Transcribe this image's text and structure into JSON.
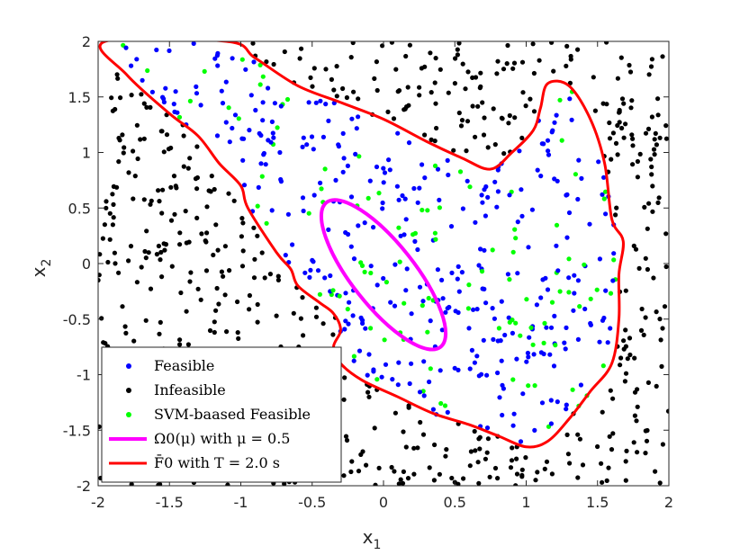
{
  "chart_data": {
    "type": "scatter",
    "title": "",
    "xlabel": "x",
    "xlabel_sub": "1",
    "ylabel": "x",
    "ylabel_sub": "2",
    "xlim": [
      -2,
      2
    ],
    "ylim": [
      -2,
      2
    ],
    "xticks": [
      -2,
      -1.5,
      -1,
      -0.5,
      0,
      0.5,
      1,
      1.5,
      2
    ],
    "xtick_labels": [
      "-2",
      "-1.5",
      "-1",
      "-0.5",
      "0",
      "0.5",
      "1",
      "1.5",
      "2"
    ],
    "yticks": [
      -2,
      -1.5,
      -1,
      -0.5,
      0,
      0.5,
      1,
      1.5,
      2
    ],
    "ytick_labels": [
      "-2",
      "-1.5",
      "-1",
      "-0.5",
      "0",
      "0.5",
      "1",
      "1.5",
      "2"
    ],
    "grid": false,
    "legend_position": "bottom-left",
    "series": [
      {
        "name": "Feasible",
        "kind": "points",
        "color": "#0000ff",
        "sample_count": 360
      },
      {
        "name": "Infeasible",
        "kind": "points",
        "color": "#000000",
        "sample_count": 640
      },
      {
        "name": "SVM-baased Feasible",
        "kind": "points",
        "color": "#00ff00",
        "sample_count": 110
      },
      {
        "name": "Ω0(μ) with μ = 0.5",
        "kind": "ellipse",
        "color": "#ff00ff",
        "center": [
          0,
          -0.1
        ],
        "axis_points": [
          [
            -0.4,
            0.55
          ],
          [
            0.4,
            -0.75
          ]
        ],
        "semi_minor": 0.22
      },
      {
        "name": "F̄0 with T = 2.0 s",
        "kind": "boundary",
        "color": "#ff0000",
        "path": [
          [
            -1.95,
            2.0
          ],
          [
            -1.8,
            1.7
          ],
          [
            -1.5,
            1.35
          ],
          [
            -1.3,
            1.15
          ],
          [
            -1.15,
            0.9
          ],
          [
            -1.0,
            0.7
          ],
          [
            -0.95,
            0.5
          ],
          [
            -0.75,
            0.1
          ],
          [
            -0.65,
            -0.05
          ],
          [
            -0.6,
            -0.2
          ],
          [
            -0.45,
            -0.35
          ],
          [
            -0.35,
            -0.45
          ],
          [
            -0.3,
            -0.6
          ],
          [
            -0.35,
            -0.75
          ],
          [
            -0.3,
            -0.9
          ],
          [
            -0.15,
            -1.05
          ],
          [
            0.1,
            -1.2
          ],
          [
            0.35,
            -1.35
          ],
          [
            0.6,
            -1.45
          ],
          [
            0.8,
            -1.55
          ],
          [
            1.0,
            -1.65
          ],
          [
            1.15,
            -1.6
          ],
          [
            1.3,
            -1.4
          ],
          [
            1.45,
            -1.15
          ],
          [
            1.6,
            -0.9
          ],
          [
            1.65,
            -0.5
          ],
          [
            1.65,
            -0.1
          ],
          [
            1.68,
            0.2
          ],
          [
            1.6,
            0.4
          ],
          [
            1.55,
            0.9
          ],
          [
            1.45,
            1.3
          ],
          [
            1.3,
            1.6
          ],
          [
            1.15,
            1.62
          ],
          [
            1.1,
            1.4
          ],
          [
            1.05,
            1.2
          ],
          [
            0.9,
            1.0
          ],
          [
            0.75,
            0.85
          ],
          [
            0.55,
            0.95
          ],
          [
            0.3,
            1.1
          ],
          [
            0.0,
            1.3
          ],
          [
            -0.3,
            1.45
          ],
          [
            -0.6,
            1.6
          ],
          [
            -0.9,
            1.85
          ],
          [
            -1.1,
            2.0
          ]
        ]
      }
    ]
  }
}
